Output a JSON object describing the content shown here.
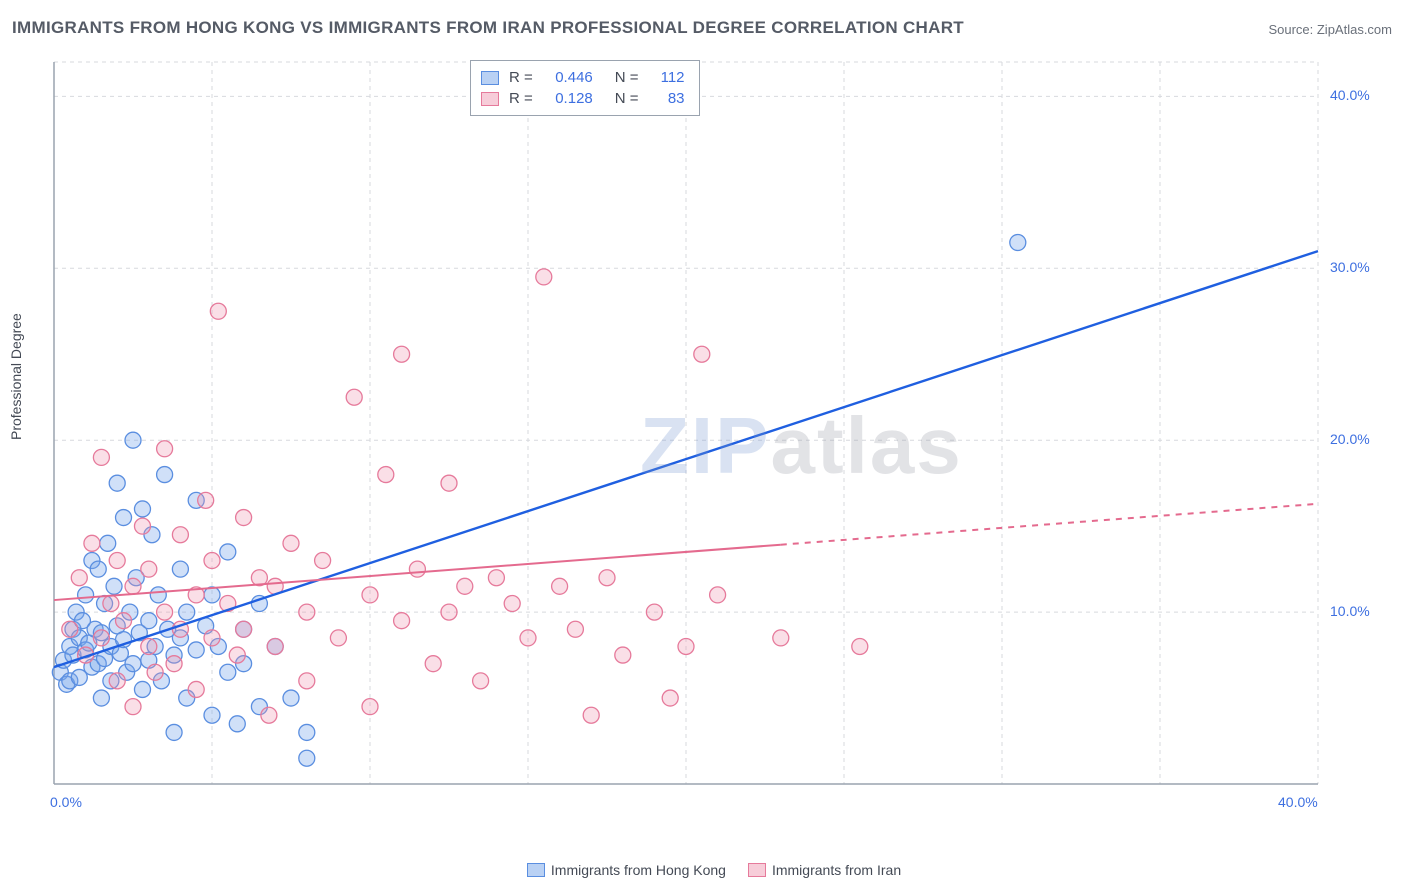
{
  "title": "IMMIGRANTS FROM HONG KONG VS IMMIGRANTS FROM IRAN PROFESSIONAL DEGREE CORRELATION CHART",
  "source_label": "Source: ",
  "source_name": "ZipAtlas.com",
  "ylabel": "Professional Degree",
  "watermark": {
    "part1": "ZIP",
    "part2": "atlas"
  },
  "chart": {
    "type": "scatter-with-regression",
    "background": "#ffffff",
    "xlim": [
      0,
      40
    ],
    "ylim": [
      0,
      42
    ],
    "x_ticks": [
      0,
      40
    ],
    "x_tick_labels": [
      "0.0%",
      "40.0%"
    ],
    "y_ticks": [
      10,
      20,
      30,
      40
    ],
    "y_tick_labels": [
      "10.0%",
      "20.0%",
      "30.0%",
      "40.0%"
    ],
    "grid_color": "#d7d9de",
    "axis_color": "#9aa3af",
    "grid_v_positions": [
      5,
      10,
      15,
      20,
      25,
      30,
      35,
      40
    ],
    "marker_radius": 8,
    "marker_stroke_width": 1.3,
    "series": [
      {
        "id": "hk",
        "label": "Immigrants from Hong Kong",
        "fill": "rgba(120,165,235,0.35)",
        "stroke": "#5a8ee0",
        "swatch_fill": "#b9d1f4",
        "swatch_border": "#5a8ee0",
        "R": "0.446",
        "N": "112",
        "regression": {
          "x1": 0,
          "y1": 6.8,
          "x2": 40,
          "y2": 31.0,
          "color": "#1f5fe0",
          "width": 2.4,
          "dash_after_x": null
        },
        "points": [
          [
            0.2,
            6.5
          ],
          [
            0.3,
            7.2
          ],
          [
            0.4,
            5.8
          ],
          [
            0.5,
            8.0
          ],
          [
            0.5,
            6.0
          ],
          [
            0.6,
            9.0
          ],
          [
            0.6,
            7.5
          ],
          [
            0.7,
            10.0
          ],
          [
            0.8,
            8.5
          ],
          [
            0.8,
            6.2
          ],
          [
            0.9,
            9.5
          ],
          [
            1.0,
            7.8
          ],
          [
            1.0,
            11.0
          ],
          [
            1.1,
            8.2
          ],
          [
            1.2,
            6.8
          ],
          [
            1.2,
            13.0
          ],
          [
            1.3,
            9.0
          ],
          [
            1.4,
            7.0
          ],
          [
            1.4,
            12.5
          ],
          [
            1.5,
            8.8
          ],
          [
            1.5,
            5.0
          ],
          [
            1.6,
            10.5
          ],
          [
            1.6,
            7.3
          ],
          [
            1.7,
            14.0
          ],
          [
            1.8,
            8.0
          ],
          [
            1.8,
            6.0
          ],
          [
            1.9,
            11.5
          ],
          [
            2.0,
            9.2
          ],
          [
            2.0,
            17.5
          ],
          [
            2.1,
            7.6
          ],
          [
            2.2,
            15.5
          ],
          [
            2.2,
            8.4
          ],
          [
            2.3,
            6.5
          ],
          [
            2.4,
            10.0
          ],
          [
            2.5,
            20.0
          ],
          [
            2.5,
            7.0
          ],
          [
            2.6,
            12.0
          ],
          [
            2.7,
            8.8
          ],
          [
            2.8,
            5.5
          ],
          [
            2.8,
            16.0
          ],
          [
            3.0,
            9.5
          ],
          [
            3.0,
            7.2
          ],
          [
            3.1,
            14.5
          ],
          [
            3.2,
            8.0
          ],
          [
            3.3,
            11.0
          ],
          [
            3.4,
            6.0
          ],
          [
            3.5,
            18.0
          ],
          [
            3.6,
            9.0
          ],
          [
            3.8,
            7.5
          ],
          [
            3.8,
            3.0
          ],
          [
            4.0,
            12.5
          ],
          [
            4.0,
            8.5
          ],
          [
            4.2,
            5.0
          ],
          [
            4.2,
            10.0
          ],
          [
            4.5,
            16.5
          ],
          [
            4.5,
            7.8
          ],
          [
            4.8,
            9.2
          ],
          [
            5.0,
            4.0
          ],
          [
            5.0,
            11.0
          ],
          [
            5.2,
            8.0
          ],
          [
            5.5,
            6.5
          ],
          [
            5.5,
            13.5
          ],
          [
            5.8,
            3.5
          ],
          [
            6.0,
            9.0
          ],
          [
            6.0,
            7.0
          ],
          [
            6.5,
            4.5
          ],
          [
            6.5,
            10.5
          ],
          [
            7.0,
            8.0
          ],
          [
            7.5,
            5.0
          ],
          [
            8.0,
            3.0
          ],
          [
            8.0,
            1.5
          ],
          [
            30.5,
            31.5
          ]
        ]
      },
      {
        "id": "iran",
        "label": "Immigrants from Iran",
        "fill": "rgba(240,150,175,0.30)",
        "stroke": "#e67a9b",
        "swatch_fill": "#f7cdd9",
        "swatch_border": "#e67a9b",
        "R": "0.128",
        "N": "83",
        "regression": {
          "x1": 0,
          "y1": 10.7,
          "x2": 40,
          "y2": 16.3,
          "color": "#e46a8e",
          "width": 2.0,
          "dash_after_x": 23
        },
        "points": [
          [
            0.5,
            9.0
          ],
          [
            0.8,
            12.0
          ],
          [
            1.0,
            7.5
          ],
          [
            1.2,
            14.0
          ],
          [
            1.5,
            19.0
          ],
          [
            1.5,
            8.5
          ],
          [
            1.8,
            10.5
          ],
          [
            2.0,
            6.0
          ],
          [
            2.0,
            13.0
          ],
          [
            2.2,
            9.5
          ],
          [
            2.5,
            11.5
          ],
          [
            2.5,
            4.5
          ],
          [
            2.8,
            15.0
          ],
          [
            3.0,
            8.0
          ],
          [
            3.0,
            12.5
          ],
          [
            3.2,
            6.5
          ],
          [
            3.5,
            10.0
          ],
          [
            3.5,
            19.5
          ],
          [
            3.8,
            7.0
          ],
          [
            4.0,
            14.5
          ],
          [
            4.0,
            9.0
          ],
          [
            4.5,
            11.0
          ],
          [
            4.5,
            5.5
          ],
          [
            4.8,
            16.5
          ],
          [
            5.0,
            8.5
          ],
          [
            5.0,
            13.0
          ],
          [
            5.2,
            27.5
          ],
          [
            5.5,
            10.5
          ],
          [
            5.8,
            7.5
          ],
          [
            6.0,
            15.5
          ],
          [
            6.0,
            9.0
          ],
          [
            6.5,
            12.0
          ],
          [
            6.8,
            4.0
          ],
          [
            7.0,
            11.5
          ],
          [
            7.0,
            8.0
          ],
          [
            7.5,
            14.0
          ],
          [
            8.0,
            6.0
          ],
          [
            8.0,
            10.0
          ],
          [
            8.5,
            13.0
          ],
          [
            9.0,
            8.5
          ],
          [
            9.5,
            22.5
          ],
          [
            10.0,
            11.0
          ],
          [
            10.0,
            4.5
          ],
          [
            10.5,
            18.0
          ],
          [
            11.0,
            9.5
          ],
          [
            11.0,
            25.0
          ],
          [
            11.5,
            12.5
          ],
          [
            12.0,
            7.0
          ],
          [
            12.5,
            17.5
          ],
          [
            12.5,
            10.0
          ],
          [
            13.0,
            11.5
          ],
          [
            13.5,
            6.0
          ],
          [
            14.0,
            12.0
          ],
          [
            14.5,
            10.5
          ],
          [
            15.0,
            8.5
          ],
          [
            15.5,
            29.5
          ],
          [
            16.0,
            11.5
          ],
          [
            16.5,
            9.0
          ],
          [
            17.0,
            4.0
          ],
          [
            17.5,
            12.0
          ],
          [
            18.0,
            7.5
          ],
          [
            19.0,
            10.0
          ],
          [
            19.5,
            5.0
          ],
          [
            20.0,
            8.0
          ],
          [
            20.5,
            25.0
          ],
          [
            21.0,
            11.0
          ],
          [
            23.0,
            8.5
          ],
          [
            25.5,
            8.0
          ]
        ]
      }
    ],
    "bottom_legend": [
      {
        "swatch_fill": "#b9d1f4",
        "swatch_border": "#5a8ee0",
        "label": "Immigrants from Hong Kong"
      },
      {
        "swatch_fill": "#f7cdd9",
        "swatch_border": "#e67a9b",
        "label": "Immigrants from Iran"
      }
    ]
  }
}
